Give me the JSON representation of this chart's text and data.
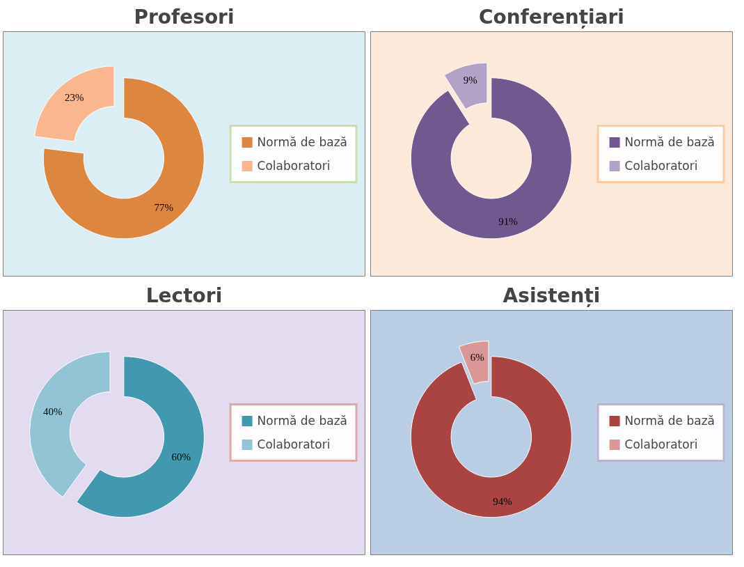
{
  "chart_data": [
    {
      "type": "donut",
      "title": "Profesori",
      "categories": [
        "Normă de bază",
        "Colaboratori"
      ],
      "values": [
        77,
        23
      ],
      "colors": [
        "#dd8640",
        "#f9b68f"
      ],
      "value_labels": [
        "77%",
        "23%"
      ],
      "legend": "right"
    },
    {
      "type": "donut",
      "title": "Conferențiari",
      "categories": [
        "Normă de bază",
        "Colaboratori"
      ],
      "values": [
        91,
        9
      ],
      "colors": [
        "#71588f",
        "#b3a2c7"
      ],
      "value_labels": [
        "91%",
        "9%"
      ],
      "legend": "right"
    },
    {
      "type": "donut",
      "title": "Lectori",
      "categories": [
        "Normă de bază",
        "Colaboratori"
      ],
      "values": [
        60,
        40
      ],
      "colors": [
        "#4198af",
        "#93c4d5"
      ],
      "value_labels": [
        "60%",
        "40%"
      ],
      "legend": "right"
    },
    {
      "type": "donut",
      "title": "Asistenți",
      "categories": [
        "Normă de bază",
        "Colaboratori"
      ],
      "values": [
        94,
        6
      ],
      "colors": [
        "#a94442",
        "#d99795"
      ],
      "value_labels": [
        "94%",
        "6%"
      ],
      "legend": "right"
    }
  ]
}
